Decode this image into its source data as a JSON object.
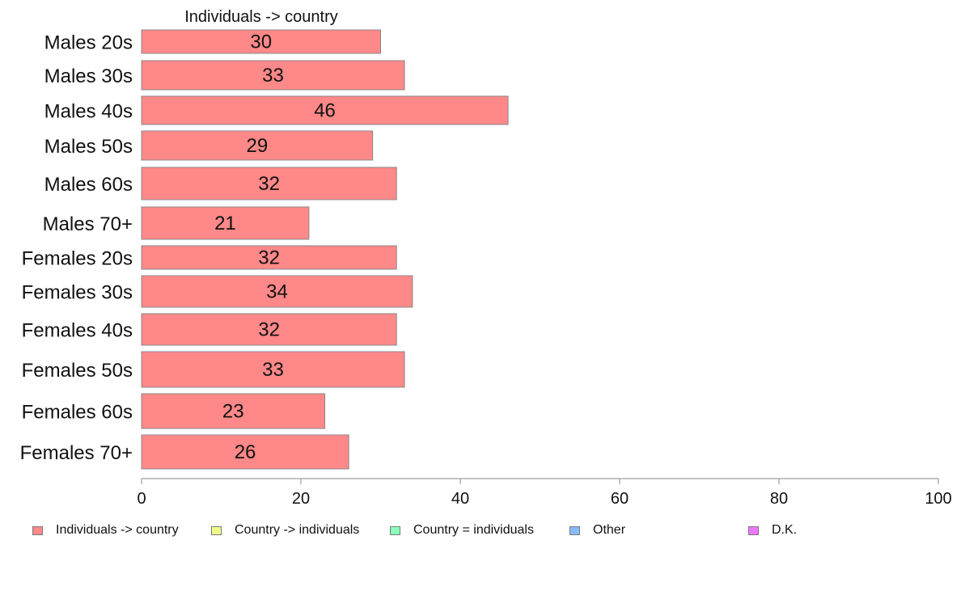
{
  "chart_data": {
    "type": "bar",
    "orientation": "horizontal",
    "categories": [
      "Males 20s",
      "Males 30s",
      "Males 40s",
      "Males 50s",
      "Males 60s",
      "Males 70+",
      "Females 20s",
      "Females 30s",
      "Females 40s",
      "Females 50s",
      "Females 60s",
      "Females 70+"
    ],
    "series": [
      {
        "name": "Individuals -> country",
        "values": [
          30,
          33,
          46,
          29,
          32,
          21,
          32,
          34,
          32,
          33,
          23,
          26
        ]
      }
    ],
    "data_labels": [
      "30",
      "33",
      "46",
      "29",
      "32",
      "21",
      "32",
      "34",
      "32",
      "33",
      "23",
      "26"
    ],
    "column_header": "Individuals -> country",
    "xlim": [
      0,
      100
    ],
    "xticks": [
      0,
      20,
      40,
      60,
      80,
      100
    ],
    "xtick_labels": [
      "0",
      "20",
      "40",
      "60",
      "80",
      "100"
    ],
    "grid": false,
    "legend_position": "bottom",
    "legend": [
      {
        "label": "Individuals -> country",
        "color": "#ff8888"
      },
      {
        "label": "Country -> individuals",
        "color": "#eeff88"
      },
      {
        "label": "Country = individuals",
        "color": "#88ffbb"
      },
      {
        "label": "Other",
        "color": "#88bbff"
      },
      {
        "label": "D.K.",
        "color": "#ee77ff"
      }
    ]
  }
}
